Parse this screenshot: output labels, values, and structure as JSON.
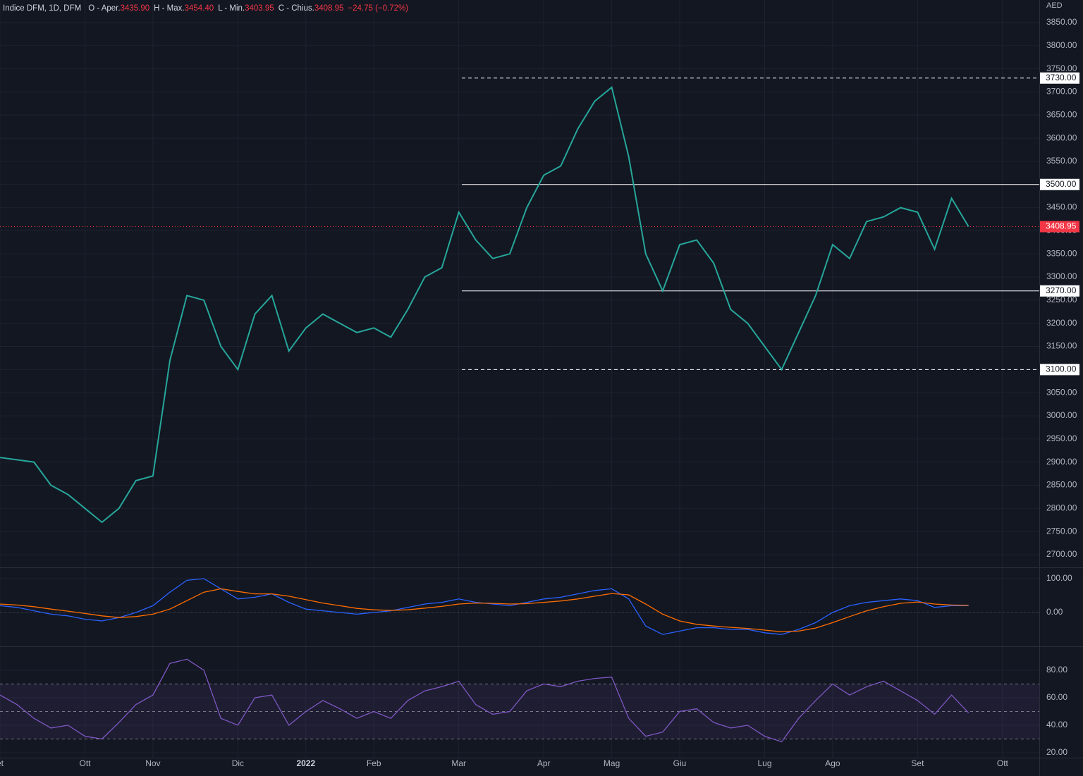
{
  "header": {
    "title": "Indice DFM, 1D, DFM",
    "ohlc": [
      [
        "O - Aper.",
        "3435.90"
      ],
      [
        "H - Max.",
        "3454.40"
      ],
      [
        "L - Min.",
        "3403.95"
      ],
      [
        "C - Chius.",
        "3408.95"
      ]
    ],
    "change": "−24.75 (−0.72%)",
    "currency": "AED"
  },
  "chart_data": [
    {
      "type": "line",
      "color": "#d1d4dc",
      "categories": [
        "et",
        null,
        null,
        null,
        null,
        "Ott",
        null,
        null,
        null,
        "Nov",
        null,
        null,
        null,
        null,
        "Dic",
        null,
        null,
        null,
        "2022",
        null,
        null,
        null,
        "Feb",
        null,
        null,
        null,
        null,
        "Mar",
        null,
        null,
        null,
        null,
        "Apr",
        null,
        null,
        null,
        "Mag",
        null,
        null,
        null,
        "Giu",
        null,
        null,
        null,
        null,
        "Lug",
        null,
        null,
        null,
        "Ago",
        null,
        null,
        null,
        null,
        "Set",
        null,
        null,
        null,
        null,
        "Ott"
      ],
      "series": [
        {
          "color": "#26a69a",
          "values": [
            2910,
            2905,
            2900,
            2850,
            2830,
            2800,
            2770,
            2800,
            2860,
            2870,
            3120,
            3260,
            3250,
            3150,
            3100,
            3220,
            3260,
            3140,
            3190,
            3220,
            3200,
            3180,
            3190,
            3170,
            3230,
            3300,
            3320,
            3440,
            3380,
            3340,
            3350,
            3450,
            3520,
            3540,
            3620,
            3680,
            3710,
            3560,
            3350,
            3270,
            3370,
            3380,
            3330,
            3230,
            3200,
            3150,
            3100,
            3180,
            3260,
            3370,
            3340,
            3420,
            3430,
            3450,
            3440,
            3360,
            3470,
            3408.95,
            null,
            null
          ]
        }
      ],
      "ylim": [
        2672.5,
        3898.7
      ],
      "yticks": [
        {
          "value": 2700,
          "label": "2700.00"
        },
        {
          "value": 2750,
          "label": "2750.00"
        },
        {
          "value": 2800,
          "label": "2800.00"
        },
        {
          "value": 2850,
          "label": "2850.00"
        },
        {
          "value": 2900,
          "label": "2900.00"
        },
        {
          "value": 2950,
          "label": "2950.00"
        },
        {
          "value": 3000,
          "label": "3000.00"
        },
        {
          "value": 3050,
          "label": "3050.00"
        },
        {
          "value": 3100,
          "label": "3100.00"
        },
        {
          "value": 3150,
          "label": "3150.00"
        },
        {
          "value": 3200,
          "label": "3200.00"
        },
        {
          "value": 3250,
          "label": "3250.00"
        },
        {
          "value": 3300,
          "label": "3300.00"
        },
        {
          "value": 3350,
          "label": "3350.00"
        },
        {
          "value": 3400,
          "label": "3400.00"
        },
        {
          "value": 3450,
          "label": "3450.00"
        },
        {
          "value": 3500,
          "label": "3500.00"
        },
        {
          "value": 3550,
          "label": "3550.00"
        },
        {
          "value": 3600,
          "label": "3600.00"
        },
        {
          "value": 3650,
          "label": "3650.00"
        },
        {
          "value": 3700,
          "label": "3700.00"
        },
        {
          "value": 3750,
          "label": "3750.00"
        },
        {
          "value": 3800,
          "label": "3800.00"
        },
        {
          "value": 3850,
          "label": "3850.00"
        }
      ],
      "levels": [
        {
          "value": 3730,
          "label": "3730.00",
          "style": "dashed"
        },
        {
          "value": 3500,
          "label": "3500.00",
          "style": "solid"
        },
        {
          "value": 3270,
          "label": "3270.00",
          "style": "solid"
        },
        {
          "value": 3100,
          "label": "3100.00",
          "style": "dashed"
        }
      ],
      "last_price": {
        "value": 3408.95,
        "label": "3408.95",
        "color": "#f23645"
      },
      "grid": true
    },
    {
      "type": "line",
      "series": [
        {
          "color": "#2962ff",
          "values": [
            20,
            15,
            5,
            -5,
            -10,
            -20,
            -25,
            -15,
            0,
            20,
            60,
            95,
            100,
            70,
            40,
            45,
            55,
            30,
            10,
            5,
            0,
            -5,
            0,
            5,
            15,
            25,
            30,
            40,
            30,
            25,
            20,
            30,
            40,
            45,
            55,
            65,
            70,
            40,
            -40,
            -65,
            -55,
            -45,
            -45,
            -50,
            -50,
            -60,
            -65,
            -50,
            -30,
            0,
            20,
            30,
            35,
            40,
            35,
            15,
            20,
            20,
            null,
            null
          ]
        },
        {
          "color": "#ff6d00",
          "values": [
            25,
            22,
            17,
            10,
            4,
            -3,
            -10,
            -15,
            -12,
            -5,
            10,
            35,
            60,
            70,
            62,
            55,
            55,
            48,
            38,
            28,
            20,
            12,
            8,
            6,
            8,
            13,
            18,
            25,
            28,
            27,
            25,
            26,
            30,
            34,
            40,
            48,
            56,
            52,
            25,
            -5,
            -25,
            -35,
            -40,
            -44,
            -47,
            -52,
            -57,
            -55,
            -46,
            -30,
            -12,
            5,
            17,
            27,
            31,
            25,
            22,
            21,
            null,
            null
          ]
        }
      ],
      "ylim": [
        -100,
        133.3
      ],
      "yticks": [
        {
          "value": 100,
          "label": "100.00"
        },
        {
          "value": 0,
          "label": "0.00"
        }
      ],
      "grid": true
    },
    {
      "type": "line",
      "series": [
        {
          "color": "#7e57c2",
          "values": [
            62,
            55,
            45,
            38,
            40,
            32,
            30,
            42,
            55,
            62,
            85,
            88,
            80,
            45,
            40,
            60,
            62,
            40,
            50,
            58,
            52,
            45,
            50,
            45,
            58,
            65,
            68,
            72,
            55,
            48,
            50,
            65,
            70,
            68,
            72,
            74,
            75,
            45,
            32,
            35,
            50,
            52,
            42,
            38,
            40,
            32,
            28,
            45,
            58,
            70,
            62,
            68,
            72,
            65,
            58,
            48,
            62,
            49,
            null,
            null
          ]
        }
      ],
      "ylim": [
        16.4,
        97.4
      ],
      "yticks": [
        {
          "value": 80,
          "label": "80.00"
        },
        {
          "value": 60,
          "label": "60.00"
        },
        {
          "value": 40,
          "label": "40.00"
        },
        {
          "value": 20,
          "label": "20.00"
        }
      ],
      "bands": [
        70,
        50,
        30
      ],
      "grid": true
    }
  ]
}
